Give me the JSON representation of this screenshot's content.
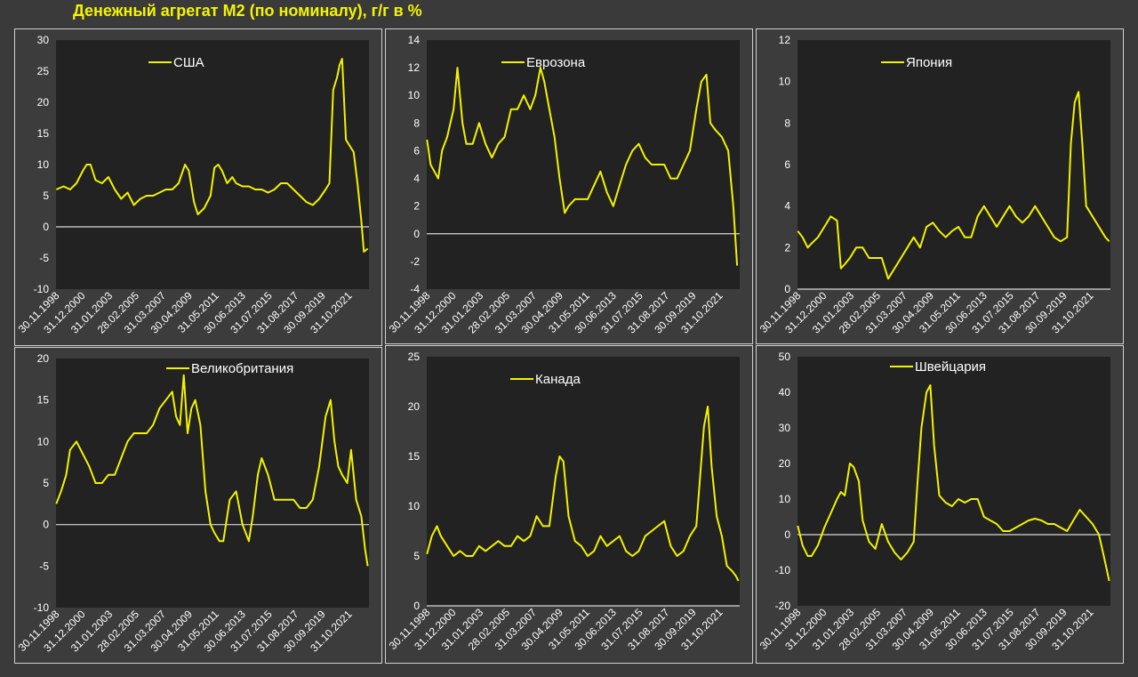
{
  "page": {
    "title": "Денежный агрегат М2 (по номиналу), г/г в %"
  },
  "colors": {
    "series": "#f2f200",
    "plot_bg": "#222222",
    "panel_bg": "#3c3c3c",
    "text": "#ffffff",
    "zero_line": "#d8d8d8",
    "grid": "#5a5a5a"
  },
  "x_tick_labels": [
    "30.11.1998",
    "31.12.2000",
    "31.01.2003",
    "28.02.2005",
    "31.03.2007",
    "30.04.2009",
    "31.05.2011",
    "30.06.2013",
    "31.07.2015",
    "31.08.2017",
    "30.09.2019",
    "31.10.2021"
  ],
  "chart_data": [
    {
      "type": "line",
      "title": "",
      "xlabel": "",
      "ylabel": "",
      "ylim": [
        -10,
        30
      ],
      "yticks": [
        -10,
        -5,
        0,
        5,
        10,
        15,
        20,
        25,
        30
      ],
      "xlim": [
        1998.9,
        2023.4
      ],
      "grid": true,
      "legend": "top-center",
      "series": [
        {
          "name": "США",
          "x": [
            1998.92,
            1999.5,
            2000.0,
            2000.5,
            2001.0,
            2001.3,
            2001.6,
            2002.0,
            2002.5,
            2003.0,
            2003.5,
            2004.0,
            2004.5,
            2005.0,
            2005.5,
            2006.0,
            2006.5,
            2007.0,
            2007.5,
            2008.0,
            2008.5,
            2009.0,
            2009.3,
            2009.7,
            2010.0,
            2010.5,
            2011.0,
            2011.3,
            2011.6,
            2011.9,
            2012.3,
            2012.7,
            2013.0,
            2013.5,
            2014.0,
            2014.5,
            2015.0,
            2015.5,
            2016.0,
            2016.5,
            2017.0,
            2017.5,
            2018.0,
            2018.5,
            2019.0,
            2019.5,
            2020.0,
            2020.3,
            2020.6,
            2020.9,
            2021.1,
            2021.3,
            2021.6,
            2021.9,
            2022.2,
            2022.5,
            2022.8,
            2023.0,
            2023.3
          ],
          "y": [
            6,
            6.5,
            6,
            7,
            9,
            10,
            10,
            7.5,
            7,
            8,
            6,
            4.5,
            5.5,
            3.5,
            4.5,
            5,
            5,
            5.5,
            6,
            6,
            7,
            10,
            9,
            4,
            2,
            3,
            5,
            9.5,
            10,
            9,
            7,
            8,
            7,
            6.5,
            6.5,
            6,
            6,
            5.5,
            6,
            7,
            7,
            6,
            5,
            4,
            3.5,
            4.5,
            6,
            7,
            22,
            24,
            26,
            27,
            14,
            13,
            12,
            7,
            1,
            -4,
            -3.5
          ]
        }
      ]
    },
    {
      "type": "line",
      "title": "",
      "xlabel": "",
      "ylabel": "",
      "ylim": [
        -4,
        14
      ],
      "yticks": [
        -4,
        -2,
        0,
        2,
        4,
        6,
        8,
        10,
        12,
        14
      ],
      "xlim": [
        1998.9,
        2023.4
      ],
      "grid": true,
      "legend": "top-center",
      "series": [
        {
          "name": "Еврозона",
          "x": [
            1998.92,
            1999.2,
            1999.5,
            1999.8,
            2000.1,
            2000.5,
            2001.0,
            2001.3,
            2001.7,
            2002.0,
            2002.5,
            2003.0,
            2003.5,
            2004.0,
            2004.5,
            2005.0,
            2005.5,
            2006.0,
            2006.5,
            2007.0,
            2007.4,
            2007.8,
            2008.1,
            2008.5,
            2008.9,
            2009.3,
            2009.7,
            2010.0,
            2010.5,
            2011.0,
            2011.5,
            2012.0,
            2012.5,
            2013.0,
            2013.5,
            2014.0,
            2014.5,
            2015.0,
            2015.5,
            2016.0,
            2016.5,
            2017.0,
            2017.5,
            2018.0,
            2018.5,
            2019.0,
            2019.5,
            2020.0,
            2020.4,
            2020.8,
            2021.1,
            2021.5,
            2022.0,
            2022.5,
            2022.9,
            2023.2
          ],
          "y": [
            6.8,
            5,
            4.5,
            4,
            6,
            7,
            9,
            12,
            8,
            6.5,
            6.5,
            8,
            6.5,
            5.5,
            6.5,
            7,
            9,
            9,
            10,
            9,
            10,
            12,
            11,
            9,
            7,
            4,
            1.5,
            2,
            2.5,
            2.5,
            2.5,
            3.5,
            4.5,
            3,
            2,
            3.5,
            5,
            6,
            6.5,
            5.5,
            5,
            5,
            5,
            4,
            4,
            5,
            6,
            9,
            11,
            11.5,
            8,
            7.5,
            7,
            6,
            2,
            -2.3
          ]
        }
      ]
    },
    {
      "type": "line",
      "title": "",
      "xlabel": "",
      "ylabel": "",
      "ylim": [
        0,
        12
      ],
      "yticks": [
        0,
        2,
        4,
        6,
        8,
        10,
        12
      ],
      "xlim": [
        1998.9,
        2023.4
      ],
      "grid": true,
      "legend": "top-center",
      "series": [
        {
          "name": "Япония",
          "x": [
            1998.92,
            1999.3,
            1999.7,
            2000.0,
            2000.5,
            2001.0,
            2001.5,
            2002.0,
            2002.3,
            2002.6,
            2003.0,
            2003.5,
            2004.0,
            2004.5,
            2005.0,
            2005.5,
            2006.0,
            2006.5,
            2007.0,
            2007.5,
            2008.0,
            2008.5,
            2009.0,
            2009.5,
            2010.0,
            2010.5,
            2011.0,
            2011.5,
            2012.0,
            2012.5,
            2013.0,
            2013.5,
            2014.0,
            2014.5,
            2015.0,
            2015.5,
            2016.0,
            2016.5,
            2017.0,
            2017.5,
            2018.0,
            2018.5,
            2019.0,
            2019.5,
            2020.0,
            2020.3,
            2020.6,
            2020.9,
            2021.2,
            2021.5,
            2022.0,
            2022.5,
            2023.0,
            2023.3
          ],
          "y": [
            2.8,
            2.5,
            2,
            2.2,
            2.5,
            3,
            3.5,
            3.3,
            1,
            1.2,
            1.5,
            2,
            2,
            1.5,
            1.5,
            1.5,
            0.5,
            1,
            1.5,
            2,
            2.5,
            2,
            3,
            3.2,
            2.8,
            2.5,
            2.8,
            3,
            2.5,
            2.5,
            3.5,
            4,
            3.5,
            3,
            3.5,
            4,
            3.5,
            3.2,
            3.5,
            4,
            3.5,
            3,
            2.5,
            2.3,
            2.5,
            7,
            9,
            9.5,
            7,
            4,
            3.5,
            3,
            2.5,
            2.3
          ]
        }
      ]
    },
    {
      "type": "line",
      "title": "",
      "xlabel": "",
      "ylabel": "",
      "ylim": [
        -10,
        20
      ],
      "yticks": [
        -10,
        -5,
        0,
        5,
        10,
        15,
        20
      ],
      "xlim": [
        1998.9,
        2023.4
      ],
      "grid": true,
      "legend": "top-center",
      "series": [
        {
          "name": "Великобритания",
          "x": [
            1998.92,
            1999.3,
            1999.7,
            2000.0,
            2000.5,
            2001.0,
            2001.5,
            2002.0,
            2002.5,
            2003.0,
            2003.5,
            2004.0,
            2004.5,
            2005.0,
            2005.5,
            2006.0,
            2006.5,
            2007.0,
            2007.5,
            2008.0,
            2008.3,
            2008.6,
            2008.9,
            2009.2,
            2009.5,
            2009.8,
            2010.2,
            2010.6,
            2011.0,
            2011.3,
            2011.7,
            2012.0,
            2012.5,
            2013.0,
            2013.5,
            2014.0,
            2014.3,
            2014.7,
            2015.0,
            2015.5,
            2016.0,
            2016.5,
            2017.0,
            2017.5,
            2018.0,
            2018.5,
            2019.0,
            2019.5,
            2020.0,
            2020.4,
            2020.7,
            2021.0,
            2021.3,
            2021.7,
            2022.0,
            2022.4,
            2022.8,
            2023.1,
            2023.3
          ],
          "y": [
            2.5,
            4,
            6,
            9,
            10,
            8.5,
            7,
            5,
            5,
            6,
            6,
            8,
            10,
            11,
            11,
            11,
            12,
            14,
            15,
            16,
            13,
            12,
            18,
            11,
            14,
            15,
            12,
            4,
            0,
            -1,
            -2,
            -2,
            3,
            4,
            0,
            -2,
            1,
            6,
            8,
            6,
            3,
            3,
            3,
            3,
            2,
            2,
            3,
            7,
            13,
            15,
            10,
            7,
            6,
            5,
            9,
            3,
            1,
            -3,
            -5
          ]
        }
      ]
    },
    {
      "type": "line",
      "title": "",
      "xlabel": "",
      "ylabel": "",
      "ylim": [
        0,
        25
      ],
      "yticks": [
        0,
        5,
        10,
        15,
        20,
        25
      ],
      "xlim": [
        1998.9,
        2023.4
      ],
      "grid": true,
      "legend": "top-center",
      "series": [
        {
          "name": "Канада",
          "x": [
            1998.92,
            1999.3,
            1999.7,
            2000.0,
            2000.5,
            2001.0,
            2001.5,
            2002.0,
            2002.5,
            2003.0,
            2003.5,
            2004.0,
            2004.5,
            2005.0,
            2005.5,
            2006.0,
            2006.5,
            2007.0,
            2007.5,
            2008.0,
            2008.5,
            2009.0,
            2009.3,
            2009.6,
            2010.0,
            2010.5,
            2011.0,
            2011.5,
            2012.0,
            2012.5,
            2013.0,
            2013.5,
            2014.0,
            2014.5,
            2015.0,
            2015.5,
            2016.0,
            2016.5,
            2017.0,
            2017.5,
            2018.0,
            2018.5,
            2019.0,
            2019.5,
            2020.0,
            2020.3,
            2020.6,
            2020.9,
            2021.2,
            2021.6,
            2022.0,
            2022.4,
            2022.8,
            2023.1,
            2023.3
          ],
          "y": [
            5.2,
            7,
            8,
            7,
            6,
            5,
            5.5,
            5,
            5,
            6,
            5.5,
            6,
            6.5,
            6,
            6,
            7,
            6.5,
            7,
            9,
            8,
            8,
            13,
            15,
            14.5,
            9,
            6.5,
            6,
            5,
            5.5,
            7,
            6,
            6.5,
            7,
            5.5,
            5,
            5.5,
            7,
            7.5,
            8,
            8.5,
            6,
            5,
            5.5,
            7,
            8,
            13,
            18,
            20,
            14,
            9,
            7,
            4,
            3.5,
            3,
            2.5
          ]
        }
      ]
    },
    {
      "type": "line",
      "title": "",
      "xlabel": "",
      "ylabel": "",
      "ylim": [
        -20,
        50
      ],
      "yticks": [
        -20,
        -10,
        0,
        10,
        20,
        30,
        40,
        50
      ],
      "xlim": [
        1998.9,
        2023.4
      ],
      "grid": true,
      "legend": "top-center",
      "series": [
        {
          "name": "Швейцария",
          "x": [
            1998.92,
            1999.3,
            1999.7,
            2000.0,
            2000.5,
            2001.0,
            2001.5,
            2002.0,
            2002.3,
            2002.6,
            2003.0,
            2003.3,
            2003.7,
            2004.0,
            2004.5,
            2005.0,
            2005.5,
            2006.0,
            2006.5,
            2007.0,
            2007.5,
            2008.0,
            2008.3,
            2008.6,
            2009.0,
            2009.3,
            2009.6,
            2010.0,
            2010.5,
            2011.0,
            2011.5,
            2012.0,
            2012.5,
            2013.0,
            2013.5,
            2014.0,
            2014.5,
            2015.0,
            2015.5,
            2016.0,
            2016.5,
            2017.0,
            2017.5,
            2018.0,
            2018.5,
            2019.0,
            2019.5,
            2020.0,
            2020.5,
            2021.0,
            2021.5,
            2022.0,
            2022.5,
            2023.0,
            2023.3
          ],
          "y": [
            2.5,
            -3,
            -6,
            -6,
            -3,
            2,
            6,
            10,
            12,
            11,
            20,
            19,
            15,
            4,
            -2,
            -4,
            3,
            -2,
            -5,
            -7,
            -5,
            -2,
            15,
            30,
            40,
            42,
            25,
            11,
            9,
            8,
            10,
            9,
            10,
            10,
            5,
            4,
            3,
            1,
            1,
            2,
            3,
            4,
            4.5,
            4,
            3,
            3,
            2,
            1,
            4,
            7,
            5,
            3,
            0,
            -8,
            -13
          ]
        }
      ]
    }
  ]
}
